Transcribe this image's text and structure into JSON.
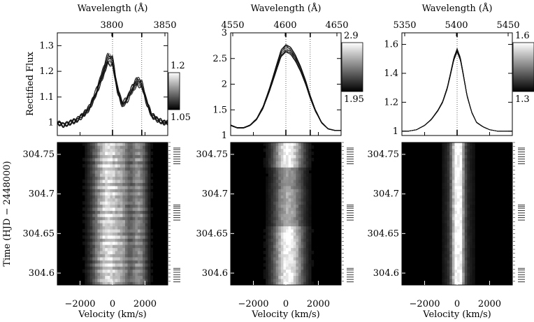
{
  "chart_data": [
    {
      "type": "line",
      "panel": "left-top",
      "x_label": "Wavelength (Å)",
      "x_ticks": [
        "3800",
        "3850"
      ],
      "x_tick_values": [
        3800,
        3850
      ],
      "v_ticks": [
        -2000,
        0,
        2000
      ],
      "xlim_velocity": [
        -3400,
        3400
      ],
      "ylabel": "Rectified Flux",
      "ylim": [
        0.95,
        1.35
      ],
      "y_ticks": [
        "1",
        "1.1",
        "1.2",
        "1.3"
      ],
      "y_tick_values": [
        1.0,
        1.1,
        1.2,
        1.3
      ],
      "colorbar": {
        "top": "1.2",
        "bottom": "1.05"
      },
      "profile": {
        "velocity": [
          -3400,
          -3000,
          -2600,
          -2200,
          -1800,
          -1400,
          -1000,
          -600,
          -300,
          0,
          300,
          600,
          900,
          1200,
          1500,
          1800,
          2100,
          2400,
          2800,
          3200,
          3400
        ],
        "flux_mean": [
          1.0,
          0.99,
          1.0,
          1.01,
          1.03,
          1.06,
          1.12,
          1.19,
          1.25,
          1.24,
          1.13,
          1.07,
          1.09,
          1.13,
          1.16,
          1.15,
          1.08,
          1.03,
          1.01,
          1.0,
          1.0
        ]
      }
    },
    {
      "type": "line",
      "panel": "middle-top",
      "x_label": "Wavelength (Å)",
      "x_ticks": [
        "4550",
        "4600",
        "4650"
      ],
      "x_tick_values": [
        4550,
        4600,
        4650
      ],
      "v_ticks": [
        -2000,
        0,
        2000
      ],
      "xlim_velocity": [
        -3400,
        3400
      ],
      "ylim": [
        1.0,
        3.0
      ],
      "y_ticks": [
        "1",
        "1.5",
        "2",
        "2.5",
        "3"
      ],
      "y_tick_values": [
        1.0,
        1.5,
        2.0,
        2.5,
        3.0
      ],
      "colorbar": {
        "top": "2.9",
        "bottom": "1.95"
      },
      "profile": {
        "velocity": [
          -3400,
          -3000,
          -2600,
          -2200,
          -1800,
          -1400,
          -1000,
          -600,
          -300,
          0,
          300,
          600,
          900,
          1200,
          1500,
          1800,
          2200,
          2600,
          3000,
          3400
        ],
        "flux_mean": [
          1.2,
          1.15,
          1.15,
          1.2,
          1.32,
          1.55,
          1.9,
          2.3,
          2.6,
          2.7,
          2.65,
          2.5,
          2.3,
          2.05,
          1.75,
          1.5,
          1.25,
          1.13,
          1.1,
          1.1
        ]
      }
    },
    {
      "type": "line",
      "panel": "right-top",
      "x_label": "Wavelength (Å)",
      "x_ticks": [
        "5350",
        "5400",
        "5450"
      ],
      "x_tick_values": [
        5350,
        5400,
        5450
      ],
      "v_ticks": [
        -2000,
        0,
        2000
      ],
      "xlim_velocity": [
        -3400,
        3400
      ],
      "ylim": [
        0.97,
        1.68
      ],
      "y_ticks": [
        "1",
        "1.2",
        "1.4",
        "1.6"
      ],
      "y_tick_values": [
        1.0,
        1.2,
        1.4,
        1.6
      ],
      "colorbar": {
        "top": "1.6",
        "bottom": "1.3"
      },
      "profile": {
        "velocity": [
          -3400,
          -3000,
          -2500,
          -2000,
          -1600,
          -1200,
          -900,
          -600,
          -400,
          -200,
          0,
          200,
          400,
          600,
          900,
          1200,
          1600,
          2000,
          2500,
          3000,
          3400
        ],
        "flux_mean": [
          1.0,
          1.0,
          1.01,
          1.04,
          1.08,
          1.14,
          1.2,
          1.3,
          1.4,
          1.5,
          1.56,
          1.5,
          1.38,
          1.25,
          1.13,
          1.06,
          1.03,
          1.01,
          1.0,
          1.0,
          1.0
        ]
      }
    },
    {
      "type": "heatmap",
      "panel": "bottom",
      "ylabel": "Time  (HJD − 2448000)",
      "xlabel": "Velocity (km/s)",
      "y_ticks": [
        "304.75",
        "304.7",
        "304.65",
        "304.6"
      ],
      "y_tick_values": [
        304.75,
        304.7,
        304.65,
        304.6
      ],
      "ylim": [
        304.585,
        304.765
      ],
      "x_ticks": [
        "−2000",
        "0",
        "2000"
      ],
      "x_tick_values": [
        -2000,
        0,
        2000
      ],
      "xlim": [
        -3400,
        3400
      ],
      "observation_times": [
        304.589,
        304.592,
        304.595,
        304.598,
        304.601,
        304.604,
        304.606,
        304.667,
        304.67,
        304.673,
        304.676,
        304.679,
        304.682,
        304.684,
        304.686,
        304.738,
        304.741,
        304.744,
        304.747,
        304.75,
        304.753,
        304.756,
        304.758
      ]
    }
  ]
}
